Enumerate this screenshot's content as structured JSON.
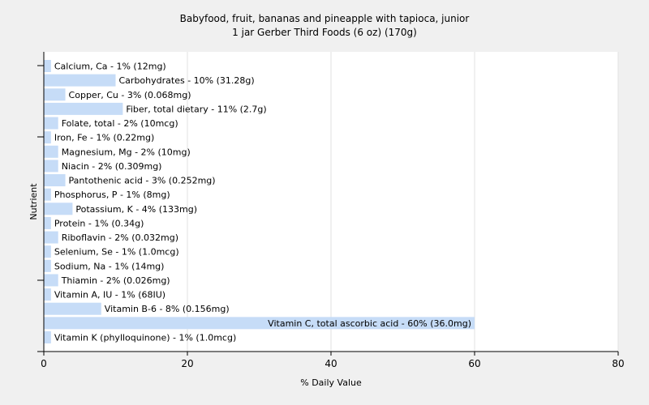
{
  "chart_data": {
    "type": "bar",
    "orientation": "horizontal",
    "title": "Babyfood, fruit, bananas and pineapple with tapioca, junior",
    "subtitle": "1 jar Gerber Third Foods (6 oz) (170g)",
    "xlabel": "% Daily Value",
    "ylabel": "Nutrient",
    "xlim": [
      0,
      80
    ],
    "xticks": [
      "0",
      "20",
      "40",
      "60",
      "80"
    ],
    "grid": true,
    "bar_color": "#c6dcf7",
    "categories": [
      "Calcium, Ca - 1% (12mg)",
      "Carbohydrates - 10% (31.28g)",
      "Copper, Cu - 3% (0.068mg)",
      "Fiber, total dietary - 11% (2.7g)",
      "Folate, total - 2% (10mcg)",
      "Iron, Fe - 1% (0.22mg)",
      "Magnesium, Mg - 2% (10mg)",
      "Niacin - 2% (0.309mg)",
      "Pantothenic acid - 3% (0.252mg)",
      "Phosphorus, P - 1% (8mg)",
      "Potassium, K - 4% (133mg)",
      "Protein - 1% (0.34g)",
      "Riboflavin - 2% (0.032mg)",
      "Selenium, Se - 1% (1.0mcg)",
      "Sodium, Na - 1% (14mg)",
      "Thiamin - 2% (0.026mg)",
      "Vitamin A, IU - 1% (68IU)",
      "Vitamin B-6 - 8% (0.156mg)",
      "Vitamin C, total ascorbic acid - 60% (36.0mg)",
      "Vitamin K (phylloquinone) - 1% (1.0mcg)"
    ],
    "values": [
      1,
      10,
      3,
      11,
      2,
      1,
      2,
      2,
      3,
      1,
      4,
      1,
      2,
      1,
      1,
      2,
      1,
      8,
      60,
      1
    ]
  }
}
